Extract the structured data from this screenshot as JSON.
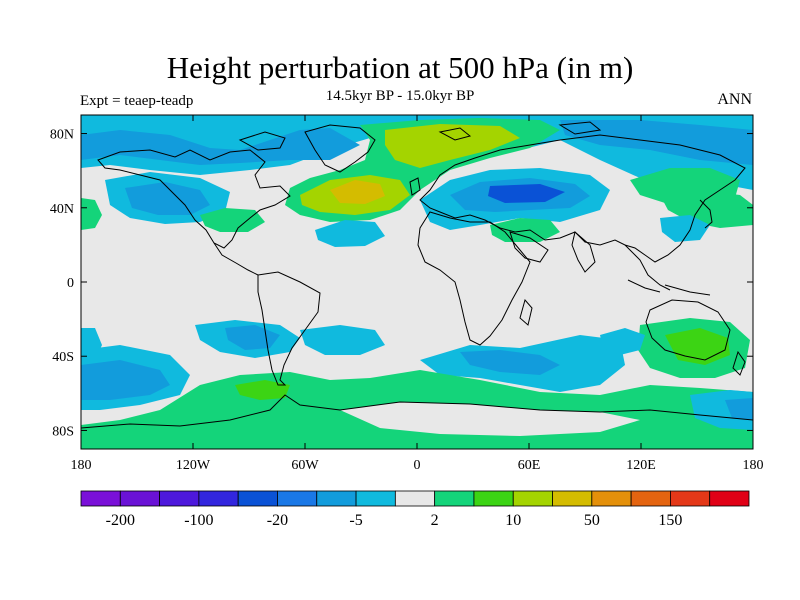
{
  "title": "Height perturbation at 500 hPa (in m)",
  "subtitle": "14.5kyr BP - 15.0kyr BP",
  "left_label": "Expt = teaep-teadp",
  "right_label": "ANN",
  "map": {
    "projection": "cylindrical-equidistant",
    "lon_range": [
      -180,
      180
    ],
    "lat_range": [
      -90,
      90
    ],
    "lat_ticks": [
      {
        "value": 80,
        "label": "80N"
      },
      {
        "value": 40,
        "label": "40N"
      },
      {
        "value": 0,
        "label": "0"
      },
      {
        "value": -40,
        "label": "40S"
      },
      {
        "value": -80,
        "label": "80S"
      }
    ],
    "lon_ticks": [
      {
        "value": -180,
        "label": "180"
      },
      {
        "value": -120,
        "label": "120W"
      },
      {
        "value": -60,
        "label": "60W"
      },
      {
        "value": 0,
        "label": "0"
      },
      {
        "value": 60,
        "label": "60E"
      },
      {
        "value": 120,
        "label": "120E"
      },
      {
        "value": 180,
        "label": "180"
      }
    ],
    "background_color": "#e8e8e8",
    "coastline_color": "#000000"
  },
  "colorbar": {
    "colors": [
      "#7a10d8",
      "#6a12d6",
      "#4d18dc",
      "#3226de",
      "#0a52d6",
      "#1a78e6",
      "#129cdc",
      "#10bade",
      "#e8e8e8",
      "#14d47a",
      "#3cd414",
      "#a4d400",
      "#d4bc00",
      "#e4900a",
      "#e46410",
      "#e43818",
      "#e00016"
    ],
    "labels": [
      {
        "text": "-200",
        "after_box": 1
      },
      {
        "text": "-100",
        "after_box": 3
      },
      {
        "text": "-20",
        "after_box": 5
      },
      {
        "text": "-5",
        "after_box": 7
      },
      {
        "text": "2",
        "after_box": 9
      },
      {
        "text": "10",
        "after_box": 11
      },
      {
        "text": "50",
        "after_box": 13
      },
      {
        "text": "150",
        "after_box": 15
      }
    ]
  }
}
